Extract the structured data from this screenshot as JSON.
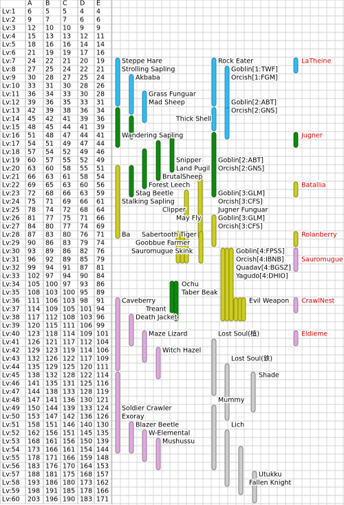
{
  "table": {
    "header": [
      "A",
      "B",
      "C",
      "D",
      "E"
    ],
    "rows": [
      [
        "Lv:1",
        6,
        5,
        5,
        4,
        4
      ],
      [
        "Lv:2",
        9,
        7,
        7,
        6,
        6
      ],
      [
        "Lv:3",
        12,
        10,
        10,
        9,
        9
      ],
      [
        "Lv:4",
        15,
        13,
        13,
        12,
        11
      ],
      [
        "Lv:5",
        18,
        16,
        16,
        14,
        14
      ],
      [
        "Lv:6",
        21,
        19,
        19,
        17,
        16
      ],
      [
        "Lv:7",
        24,
        22,
        21,
        20,
        19
      ],
      [
        "Lv:8",
        27,
        25,
        24,
        22,
        21
      ],
      [
        "Lv:9",
        30,
        28,
        27,
        25,
        24
      ],
      [
        "Lv:10",
        33,
        31,
        30,
        28,
        26
      ],
      [
        "Lv:11",
        36,
        34,
        33,
        30,
        28
      ],
      [
        "Lv:12",
        39,
        36,
        35,
        33,
        31
      ],
      [
        "Lv:13",
        42,
        39,
        38,
        36,
        34
      ],
      [
        "Lv:14",
        45,
        42,
        41,
        39,
        36
      ],
      [
        "Lv:15",
        48,
        45,
        44,
        41,
        39
      ],
      [
        "Lv:16",
        51,
        48,
        47,
        44,
        41
      ],
      [
        "Lv:17",
        54,
        51,
        49,
        47,
        44
      ],
      [
        "Lv:18",
        57,
        54,
        52,
        49,
        46
      ],
      [
        "Lv:19",
        60,
        57,
        55,
        52,
        49
      ],
      [
        "Lv:20",
        63,
        60,
        58,
        55,
        51
      ],
      [
        "Lv:21",
        66,
        63,
        61,
        58,
        54
      ],
      [
        "Lv:22",
        69,
        65,
        63,
        60,
        56
      ],
      [
        "Lv:23",
        72,
        68,
        66,
        63,
        59
      ],
      [
        "Lv:24",
        75,
        71,
        69,
        66,
        61
      ],
      [
        "Lv:25",
        78,
        74,
        72,
        68,
        64
      ],
      [
        "Lv:26",
        81,
        77,
        75,
        71,
        66
      ],
      [
        "Lv:27",
        84,
        80,
        77,
        74,
        69
      ],
      [
        "Lv:28",
        87,
        83,
        80,
        76,
        71
      ],
      [
        "Lv:29",
        90,
        86,
        83,
        79,
        74
      ],
      [
        "Lv:30",
        93,
        89,
        86,
        82,
        76
      ],
      [
        "Lv:31",
        96,
        92,
        89,
        85,
        79
      ],
      [
        "Lv:32",
        99,
        94,
        91,
        87,
        81
      ],
      [
        "Lv:33",
        102,
        97,
        94,
        90,
        84
      ],
      [
        "Lv:34",
        105,
        100,
        97,
        93,
        86
      ],
      [
        "Lv:35",
        108,
        103,
        100,
        95,
        89
      ],
      [
        "Lv:36",
        111,
        106,
        103,
        98,
        91
      ],
      [
        "Lv:37",
        114,
        109,
        105,
        101,
        94
      ],
      [
        "Lv:38",
        117,
        112,
        108,
        103,
        96
      ],
      [
        "Lv:39",
        120,
        115,
        111,
        106,
        99
      ],
      [
        "Lv:40",
        123,
        118,
        114,
        109,
        101
      ],
      [
        "Lv:41",
        126,
        121,
        117,
        112,
        104
      ],
      [
        "Lv:42",
        129,
        123,
        119,
        114,
        106
      ],
      [
        "Lv:43",
        132,
        126,
        122,
        117,
        109
      ],
      [
        "Lv:44",
        135,
        129,
        125,
        120,
        111
      ],
      [
        "Lv:45",
        138,
        132,
        128,
        122,
        114
      ],
      [
        "Lv:46",
        141,
        135,
        131,
        125,
        116
      ],
      [
        "Lv:47",
        144,
        138,
        133,
        128,
        119
      ],
      [
        "Lv:48",
        147,
        141,
        136,
        130,
        121
      ],
      [
        "Lv:49",
        150,
        144,
        139,
        133,
        124
      ],
      [
        "Lv:50",
        153,
        147,
        142,
        136,
        126
      ],
      [
        "Lv:51",
        158,
        151,
        146,
        140,
        130
      ],
      [
        "Lv:52",
        162,
        156,
        151,
        145,
        135
      ],
      [
        "Lv:53",
        168,
        161,
        156,
        150,
        139
      ],
      [
        "Lv:54",
        173,
        166,
        161,
        154,
        144
      ],
      [
        "Lv:55",
        178,
        171,
        166,
        159,
        148
      ],
      [
        "Lv:56",
        183,
        176,
        170,
        164,
        153
      ],
      [
        "Lv:57",
        188,
        181,
        175,
        168,
        157
      ],
      [
        "Lv:58",
        193,
        186,
        180,
        173,
        162
      ],
      [
        "Lv:59",
        198,
        191,
        185,
        178,
        166
      ],
      [
        "Lv:60",
        203,
        196,
        190,
        183,
        171
      ]
    ]
  },
  "monsters": [
    "Steppe Hare",
    "Rock Eater",
    "Strolling Sapling",
    "Goblin[1:TWF]",
    "Akbaba",
    "Orcish[1:FGM]",
    "Grass Funguar",
    "Mad Sheep",
    "Goblin[2:ABT]",
    "Orcish[2:GNS]",
    "Thick Shell",
    "Wandering Sapling",
    "Snipper",
    "Goblin[2:ABT]",
    "Land Pugil",
    "Orcish[2:GNS]",
    "BrutalSheep",
    "Forest Leech",
    "Stag Beetle",
    "Goblin[3:GLM]",
    "Stalking Sapling",
    "Orcish[3:CFS]",
    "Clipper",
    "Jugner Funguar",
    "May Fly",
    "Goblin[3:GLM]",
    "Orcish[3:CFS]",
    "Ba",
    "Sabertooth Tiger",
    "Goobbue Farmer",
    "Sauromugue Skink",
    "Goblin[4:FPSS]",
    "Orcish[4:IBNB]",
    "Quadav[4:BGSZ]",
    "Yagudo[4:DHIO]",
    "Ochu",
    "Taber Beak",
    "Caveberry",
    "Evil Weapon",
    "Treant",
    "Death Jacket",
    "Maze Lizard",
    "Lost Soul(植)",
    "Witch Hazel",
    "Lost Soul(鉄)",
    "Shade",
    "Mummy",
    "Soldier Crawler",
    "Exoray",
    "Blazer Beetle",
    "Lich",
    "W-Elemental",
    "Mushussu",
    "Utukku",
    "Fallen Knight"
  ],
  "areas": [
    "LaTheine",
    "Jugner",
    "Batallia",
    "Rolanberry",
    "Sauromugue",
    "CrawlNest",
    "Eldieme"
  ]
}
